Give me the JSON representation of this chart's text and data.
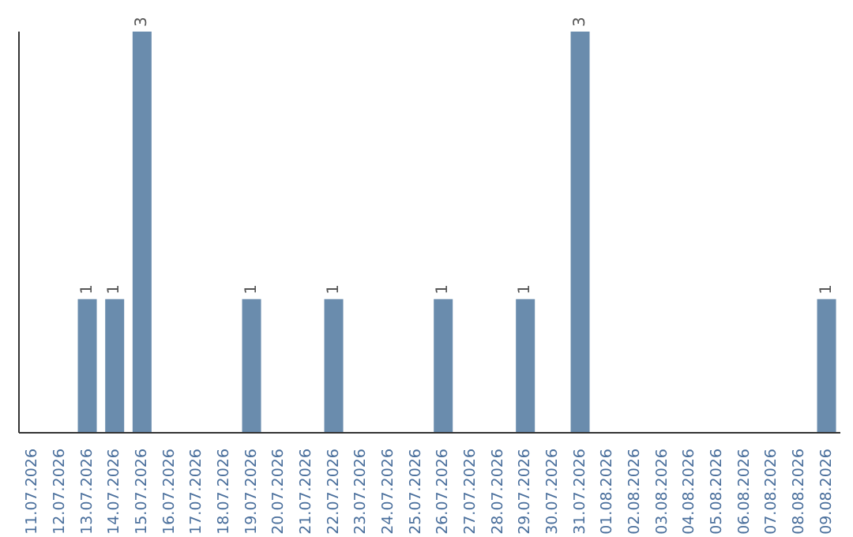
{
  "chart_data": {
    "type": "bar",
    "categories": [
      "11.07.2026",
      "12.07.2026",
      "13.07.2026",
      "14.07.2026",
      "15.07.2026",
      "16.07.2026",
      "17.07.2026",
      "18.07.2026",
      "19.07.2026",
      "20.07.2026",
      "21.07.2026",
      "22.07.2026",
      "23.07.2026",
      "24.07.2026",
      "25.07.2026",
      "26.07.2026",
      "27.07.2026",
      "28.07.2026",
      "29.07.2026",
      "30.07.2026",
      "31.07.2026",
      "01.08.2026",
      "02.08.2026",
      "03.08.2026",
      "04.08.2026",
      "05.08.2026",
      "06.08.2026",
      "07.08.2026",
      "08.08.2026",
      "09.08.2026"
    ],
    "values": [
      0,
      0,
      1,
      1,
      3,
      0,
      0,
      0,
      1,
      0,
      0,
      1,
      0,
      0,
      0,
      1,
      0,
      0,
      1,
      0,
      3,
      0,
      0,
      0,
      0,
      0,
      0,
      0,
      0,
      1
    ],
    "value_labels": [
      null,
      null,
      "1",
      "1",
      "3",
      null,
      null,
      null,
      "1",
      null,
      null,
      "1",
      null,
      null,
      null,
      "1",
      null,
      null,
      "1",
      null,
      "3",
      null,
      null,
      null,
      null,
      null,
      null,
      null,
      null,
      "1"
    ],
    "color": "#6a8cad",
    "ylim": [
      0,
      3
    ],
    "tick_labels": "x",
    "grid": false,
    "legend": false
  }
}
